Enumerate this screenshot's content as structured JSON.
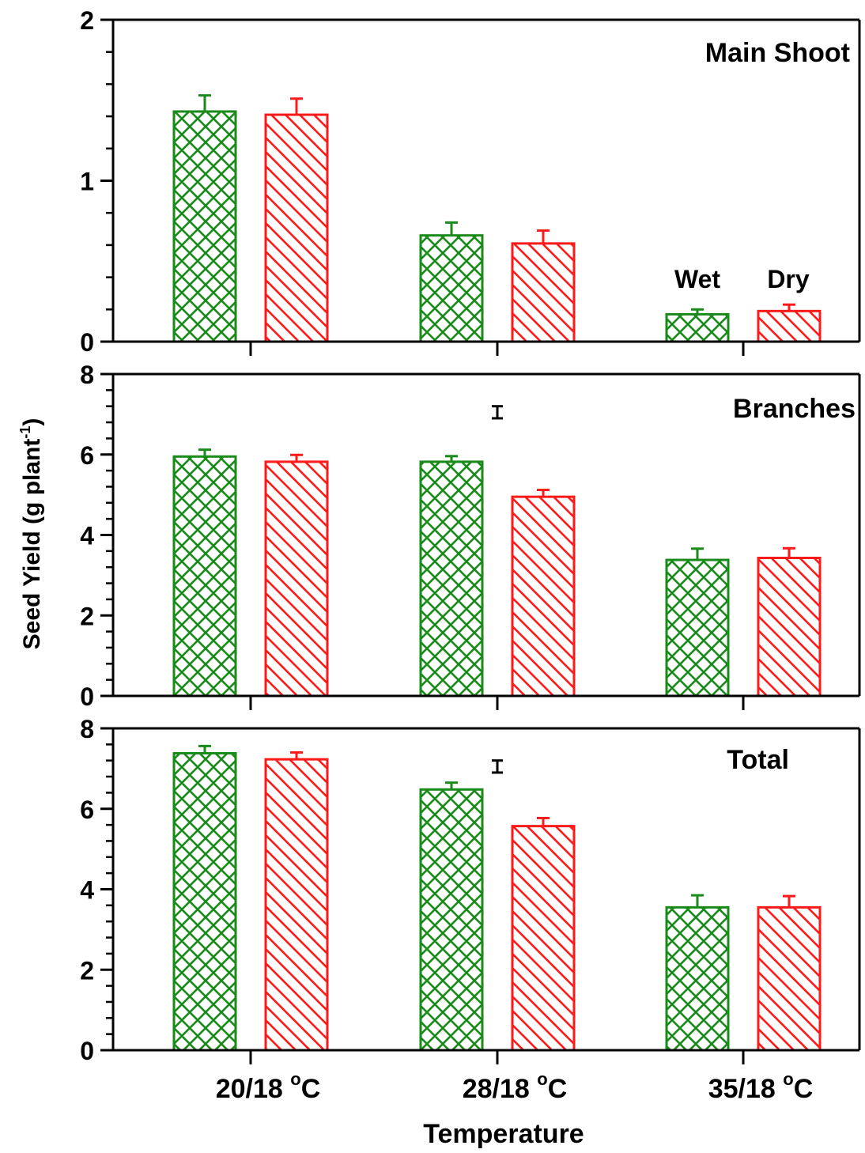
{
  "chart_data": [
    {
      "type": "bar",
      "title": "Main Shoot",
      "categories": [
        "20/18 °C",
        "28/18 °C",
        "35/18 °C"
      ],
      "series": [
        {
          "name": "Wet",
          "values": [
            1.43,
            0.66,
            0.17
          ],
          "errors": [
            0.1,
            0.08,
            0.03
          ]
        },
        {
          "name": "Dry",
          "values": [
            1.41,
            0.61,
            0.19
          ],
          "errors": [
            0.1,
            0.08,
            0.04
          ]
        }
      ],
      "ylim": [
        0,
        2
      ],
      "yticks": [
        0,
        1,
        2
      ],
      "ytick_labels": [
        "0",
        "1",
        "2"
      ],
      "lsd": null
    },
    {
      "type": "bar",
      "title": "Branches",
      "categories": [
        "20/18 °C",
        "28/18 °C",
        "35/18 °C"
      ],
      "series": [
        {
          "name": "Wet",
          "values": [
            5.95,
            5.82,
            3.38
          ],
          "errors": [
            0.17,
            0.14,
            0.28
          ]
        },
        {
          "name": "Dry",
          "values": [
            5.82,
            4.95,
            3.43
          ],
          "errors": [
            0.17,
            0.17,
            0.24
          ]
        }
      ],
      "ylim": [
        0,
        8
      ],
      "yticks": [
        0,
        2,
        4,
        6,
        8
      ],
      "ytick_labels": [
        "0",
        "2",
        "4",
        "6",
        "8"
      ],
      "lsd": {
        "category": "28/18 °C",
        "center": 7.05,
        "half_range": 0.15
      }
    },
    {
      "type": "bar",
      "title": "Total",
      "categories": [
        "20/18 °C",
        "28/18 °C",
        "35/18 °C"
      ],
      "series": [
        {
          "name": "Wet",
          "values": [
            7.38,
            6.48,
            3.55
          ],
          "errors": [
            0.18,
            0.17,
            0.3
          ]
        },
        {
          "name": "Dry",
          "values": [
            7.23,
            5.57,
            3.55
          ],
          "errors": [
            0.17,
            0.2,
            0.28
          ]
        }
      ],
      "ylim": [
        0,
        8
      ],
      "yticks": [
        0,
        2,
        4,
        6,
        8
      ],
      "ytick_labels": [
        "0",
        "2",
        "4",
        "6",
        "8"
      ],
      "lsd": {
        "category": "28/18 °C",
        "center": 7.05,
        "half_range": 0.15
      }
    }
  ],
  "labels": {
    "ylabel_main": "Seed Yield (g plant",
    "ylabel_sup": "-1",
    "ylabel_end": ")",
    "xlabel": "Temperature",
    "x_ticks": [
      {
        "main": "20/18 ",
        "sup": "o",
        "end": "C"
      },
      {
        "main": "28/18 ",
        "sup": "o",
        "end": "C"
      },
      {
        "main": "35/18 ",
        "sup": "o",
        "end": "C"
      }
    ],
    "legend_wet": "Wet",
    "legend_dry": "Dry"
  },
  "colors": {
    "wet": "#1a8a1a",
    "dry": "#ff1a1a",
    "axis": "#000000"
  },
  "patterns": {
    "wet": "crosshatch",
    "dry": "diagonal-hatch"
  },
  "legend_placement": "inside top panel, above 35/18 °C bars"
}
